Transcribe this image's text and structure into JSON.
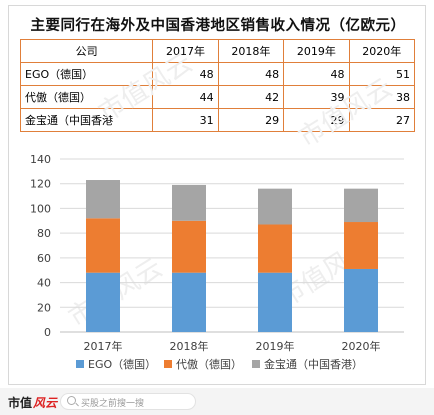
{
  "chart_data": [
    {
      "type": "table",
      "title": "主要同行在海外及中国香港地区销售收入情况（亿欧元）",
      "columns": [
        "公司",
        "2017年",
        "2018年",
        "2019年",
        "2020年"
      ],
      "rows": [
        [
          "EGO（德国）",
          "48",
          "48",
          "48",
          "51"
        ],
        [
          "代傲（德国）",
          "44",
          "42",
          "39",
          "38"
        ],
        [
          "金宝通（中国香港",
          "31",
          "29",
          "29",
          "27"
        ]
      ]
    },
    {
      "type": "bar",
      "stacked": true,
      "categories": [
        "2017年",
        "2018年",
        "2019年",
        "2020年"
      ],
      "series": [
        {
          "name": "EGO（德国）",
          "values": [
            48,
            48,
            48,
            51
          ],
          "color": "#5b9bd5"
        },
        {
          "name": "代傲（德国）",
          "values": [
            44,
            42,
            39,
            38
          ],
          "color": "#ed7d31"
        },
        {
          "name": "金宝通（中国香港）",
          "values": [
            31,
            29,
            29,
            27
          ],
          "color": "#a5a5a5"
        }
      ],
      "ylim": [
        0,
        140
      ],
      "yticks": [
        "0",
        "20",
        "40",
        "60",
        "80",
        "100",
        "120",
        "140"
      ],
      "grid": true,
      "legend_position": "bottom"
    }
  ],
  "watermark": "市值风云",
  "footer": {
    "logo_left": "市值",
    "logo_right": "风云",
    "search_placeholder": "买股之前搜一搜"
  }
}
